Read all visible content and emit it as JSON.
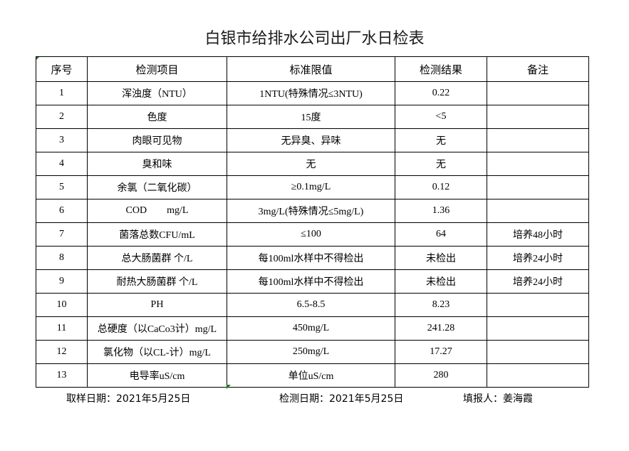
{
  "title": "白银市给排水公司出厂水日检表",
  "columns": [
    "序号",
    "检测项目",
    "标准限值",
    "检测结果",
    "备注"
  ],
  "rows": [
    [
      "1",
      "浑浊度（NTU）",
      "1NTU(特殊情况≤3NTU)",
      "0.22",
      ""
    ],
    [
      "2",
      "色度",
      "15度",
      "<5",
      ""
    ],
    [
      "3",
      "肉眼可见物",
      "无异臭、异味",
      "无",
      ""
    ],
    [
      "4",
      "臭和味",
      "无",
      "无",
      ""
    ],
    [
      "5",
      "余氯（二氧化碳）",
      "≥0.1mg/L",
      "0.12",
      ""
    ],
    [
      "6",
      "COD        mg/L",
      "3mg/L(特殊情况≤5mg/L)",
      "1.36",
      ""
    ],
    [
      "7",
      "菌落总数CFU/mL",
      "≤100",
      "64",
      "培养48小时"
    ],
    [
      "8",
      "总大肠菌群 个/L",
      "每100ml水样中不得检出",
      "未检出",
      "培养24小时"
    ],
    [
      "9",
      "耐热大肠菌群 个/L",
      "每100ml水样中不得检出",
      "未检出",
      "培养24小时"
    ],
    [
      "10",
      "PH",
      "6.5-8.5",
      "8.23",
      ""
    ],
    [
      "11",
      "总硬度（以CaCo3计）mg/L",
      "450mg/L",
      "241.28",
      ""
    ],
    [
      "12",
      "氯化物（以CL-计）mg/L",
      "250mg/L",
      "17.27",
      ""
    ],
    [
      "13",
      "电导率uS/cm",
      "单位uS/cm",
      "280",
      ""
    ]
  ],
  "footer": {
    "sample_date": "取样日期：2021年5月25日",
    "test_date": "检测日期：2021年5月25日",
    "reporter": "填报人：姜海霞"
  }
}
